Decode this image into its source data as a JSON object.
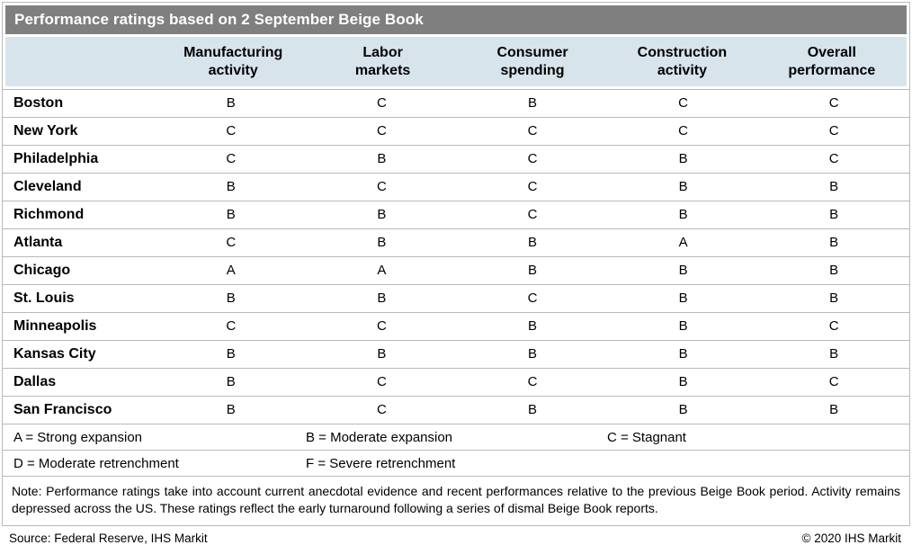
{
  "chart_data": {
    "type": "table",
    "title": "Performance ratings based on 2 September Beige Book",
    "columns": [
      {
        "label": "Manufacturing activity",
        "lines": [
          "Manufacturing",
          "activity"
        ]
      },
      {
        "label": "Labor markets",
        "lines": [
          "Labor",
          "markets"
        ]
      },
      {
        "label": "Consumer spending",
        "lines": [
          "Consumer",
          "spending"
        ]
      },
      {
        "label": "Construction activity",
        "lines": [
          "Construction",
          "activity"
        ]
      },
      {
        "label": "Overall performance",
        "lines": [
          "Overall",
          "performance"
        ]
      }
    ],
    "rows": [
      {
        "district": "Boston",
        "values": [
          "B",
          "C",
          "B",
          "C",
          "C"
        ]
      },
      {
        "district": "New York",
        "values": [
          "C",
          "C",
          "C",
          "C",
          "C"
        ]
      },
      {
        "district": "Philadelphia",
        "values": [
          "C",
          "B",
          "C",
          "B",
          "C"
        ]
      },
      {
        "district": "Cleveland",
        "values": [
          "B",
          "C",
          "C",
          "B",
          "B"
        ]
      },
      {
        "district": "Richmond",
        "values": [
          "B",
          "B",
          "C",
          "B",
          "B"
        ]
      },
      {
        "district": "Atlanta",
        "values": [
          "C",
          "B",
          "B",
          "A",
          "B"
        ]
      },
      {
        "district": "Chicago",
        "values": [
          "A",
          "A",
          "B",
          "B",
          "B"
        ]
      },
      {
        "district": "St. Louis",
        "values": [
          "B",
          "B",
          "C",
          "B",
          "B"
        ]
      },
      {
        "district": "Minneapolis",
        "values": [
          "C",
          "C",
          "B",
          "B",
          "C"
        ]
      },
      {
        "district": "Kansas City",
        "values": [
          "B",
          "B",
          "B",
          "B",
          "B"
        ]
      },
      {
        "district": "Dallas",
        "values": [
          "B",
          "C",
          "C",
          "B",
          "C"
        ]
      },
      {
        "district": "San Francisco",
        "values": [
          "B",
          "C",
          "B",
          "B",
          "B"
        ]
      }
    ],
    "legend_rows": [
      [
        "A = Strong expansion",
        "B = Moderate expansion",
        "C = Stagnant"
      ],
      [
        "D = Moderate retrenchment",
        "F = Severe retrenchment",
        ""
      ]
    ],
    "note": "Note: Performance ratings take into account current anecdotal evidence and recent performances relative to the previous Beige Book period. Activity remains depressed across the US. These ratings reflect the early turnaround following a series of dismal Beige Book reports.",
    "source": "Source: Federal Reserve, IHS Markit",
    "copyright": "© 2020 IHS Markit",
    "layout": {
      "grid": "horizontal-rules-only",
      "legend_position": "below-table"
    }
  },
  "colors": {
    "title_bar_bg": "#7f7f7f",
    "title_text": "#ffffff",
    "header_bg": "#d7e4ec",
    "border": "#b9b9b9",
    "body_text": "#000000"
  }
}
